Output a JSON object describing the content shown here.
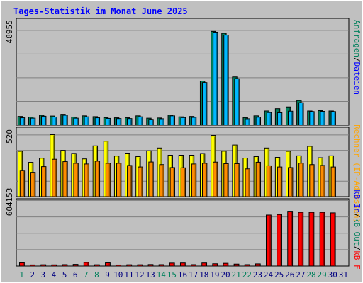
{
  "chart_data": [
    {
      "type": "bar",
      "title": "Tages-Statistik im Monat June 2025",
      "ytick_label": "48955",
      "ylim": [
        0,
        55100
      ],
      "grid": true,
      "legend": [
        {
          "text": "Anfragen",
          "color": "#00805c"
        },
        {
          "text": "Dateien",
          "color": "#0000ff"
        }
      ],
      "categories": [
        "1",
        "2",
        "3",
        "4",
        "5",
        "6",
        "7",
        "8",
        "9",
        "10",
        "11",
        "12",
        "13",
        "14",
        "15",
        "16",
        "17",
        "18",
        "19",
        "20",
        "21",
        "22",
        "23",
        "24",
        "25",
        "26",
        "27",
        "28",
        "29",
        "30",
        "31"
      ],
      "series": [
        {
          "name": "Anfragen",
          "color": "#00805c",
          "values": [
            4500,
            4200,
            5100,
            4700,
            5600,
            4200,
            4800,
            4400,
            3900,
            3800,
            3800,
            4800,
            3600,
            3700,
            5200,
            4300,
            4500,
            22800,
            48400,
            47400,
            24900,
            3900,
            4800,
            7300,
            8500,
            9400,
            12700,
            7300,
            7500,
            7300,
            0
          ]
        },
        {
          "name": "Dateien",
          "color": "#00b8ff",
          "values": [
            3800,
            3600,
            4600,
            4200,
            5100,
            3600,
            4300,
            3800,
            3500,
            3400,
            3400,
            4300,
            3000,
            3300,
            4800,
            3900,
            4000,
            22000,
            48000,
            46500,
            24000,
            3300,
            4100,
            6500,
            6400,
            7200,
            11600,
            7000,
            7100,
            7000,
            0
          ]
        }
      ]
    },
    {
      "type": "bar",
      "ytick_label": "520",
      "ylim": [
        0,
        585
      ],
      "grid": true,
      "legend": [
        {
          "text": "Rechner (IP-Adressen)",
          "color": "#ffa500"
        }
      ],
      "categories": [
        "1",
        "2",
        "3",
        "4",
        "5",
        "6",
        "7",
        "8",
        "9",
        "10",
        "11",
        "12",
        "13",
        "14",
        "15",
        "16",
        "17",
        "18",
        "19",
        "20",
        "21",
        "22",
        "23",
        "24",
        "25",
        "26",
        "27",
        "28",
        "29",
        "30",
        "31"
      ],
      "series": [
        {
          "name": "Besuche",
          "color": "#ffff00",
          "values": [
            382,
            289,
            324,
            522,
            390,
            365,
            318,
            428,
            467,
            342,
            367,
            337,
            386,
            410,
            349,
            349,
            349,
            364,
            516,
            383,
            435,
            325,
            337,
            410,
            331,
            382,
            344,
            424,
            328,
            344,
            0
          ]
        },
        {
          "name": "Rechner (IP-Adressen)",
          "color": "#ff8c00",
          "values": [
            222,
            205,
            253,
            315,
            295,
            281,
            275,
            299,
            281,
            281,
            263,
            250,
            292,
            270,
            245,
            243,
            275,
            281,
            291,
            278,
            278,
            234,
            290,
            260,
            250,
            245,
            282,
            270,
            263,
            250,
            0
          ]
        }
      ]
    },
    {
      "type": "bar",
      "ytick_label": "604153",
      "ylim": [
        0,
        620000
      ],
      "grid": true,
      "legend": [
        {
          "text": "kB In",
          "color": "#0000ff"
        },
        {
          "text": "kB Out",
          "color": "#00805c"
        },
        {
          "text": "kB F",
          "color": "#ff0000"
        }
      ],
      "categories": [
        "1",
        "2",
        "3",
        "4",
        "5",
        "6",
        "7",
        "8",
        "9",
        "10",
        "11",
        "12",
        "13",
        "14",
        "15",
        "16",
        "17",
        "18",
        "19",
        "20",
        "21",
        "22",
        "23",
        "24",
        "25",
        "26",
        "27",
        "28",
        "29",
        "30",
        "31"
      ],
      "series": [
        {
          "name": "kB F",
          "color": "#ff0000",
          "values": [
            30000,
            10500,
            12000,
            11000,
            13000,
            15500,
            33000,
            12000,
            29000,
            10000,
            12000,
            12000,
            14000,
            13000,
            27000,
            28000,
            13000,
            28000,
            21000,
            25000,
            18000,
            13000,
            20000,
            470000,
            475000,
            505000,
            495000,
            495000,
            495000,
            490000,
            0
          ]
        }
      ]
    }
  ],
  "xaxis": {
    "labels": [
      {
        "text": "1",
        "color": "#00805c"
      },
      {
        "text": "2",
        "color": "#000080"
      },
      {
        "text": "3",
        "color": "#000080"
      },
      {
        "text": "4",
        "color": "#000080"
      },
      {
        "text": "5",
        "color": "#000080"
      },
      {
        "text": "6",
        "color": "#000080"
      },
      {
        "text": "7",
        "color": "#00805c"
      },
      {
        "text": "8",
        "color": "#00805c"
      },
      {
        "text": "9",
        "color": "#000080"
      },
      {
        "text": "10",
        "color": "#000080"
      },
      {
        "text": "11",
        "color": "#000080"
      },
      {
        "text": "12",
        "color": "#000080"
      },
      {
        "text": "13",
        "color": "#000080"
      },
      {
        "text": "14",
        "color": "#00805c"
      },
      {
        "text": "15",
        "color": "#00805c"
      },
      {
        "text": "16",
        "color": "#000080"
      },
      {
        "text": "17",
        "color": "#000080"
      },
      {
        "text": "18",
        "color": "#000080"
      },
      {
        "text": "19",
        "color": "#000080"
      },
      {
        "text": "20",
        "color": "#000080"
      },
      {
        "text": "21",
        "color": "#00805c"
      },
      {
        "text": "22",
        "color": "#00805c"
      },
      {
        "text": "23",
        "color": "#000080"
      },
      {
        "text": "24",
        "color": "#000080"
      },
      {
        "text": "25",
        "color": "#000080"
      },
      {
        "text": "26",
        "color": "#000080"
      },
      {
        "text": "27",
        "color": "#000080"
      },
      {
        "text": "28",
        "color": "#00805c"
      },
      {
        "text": "29",
        "color": "#00805c"
      },
      {
        "text": "30",
        "color": "#000080"
      },
      {
        "text": "31",
        "color": "#000080"
      }
    ]
  },
  "colors": {
    "background": "#c0c0c0",
    "title": "#0000ff",
    "frame": "#000000",
    "grid": "#808080"
  }
}
